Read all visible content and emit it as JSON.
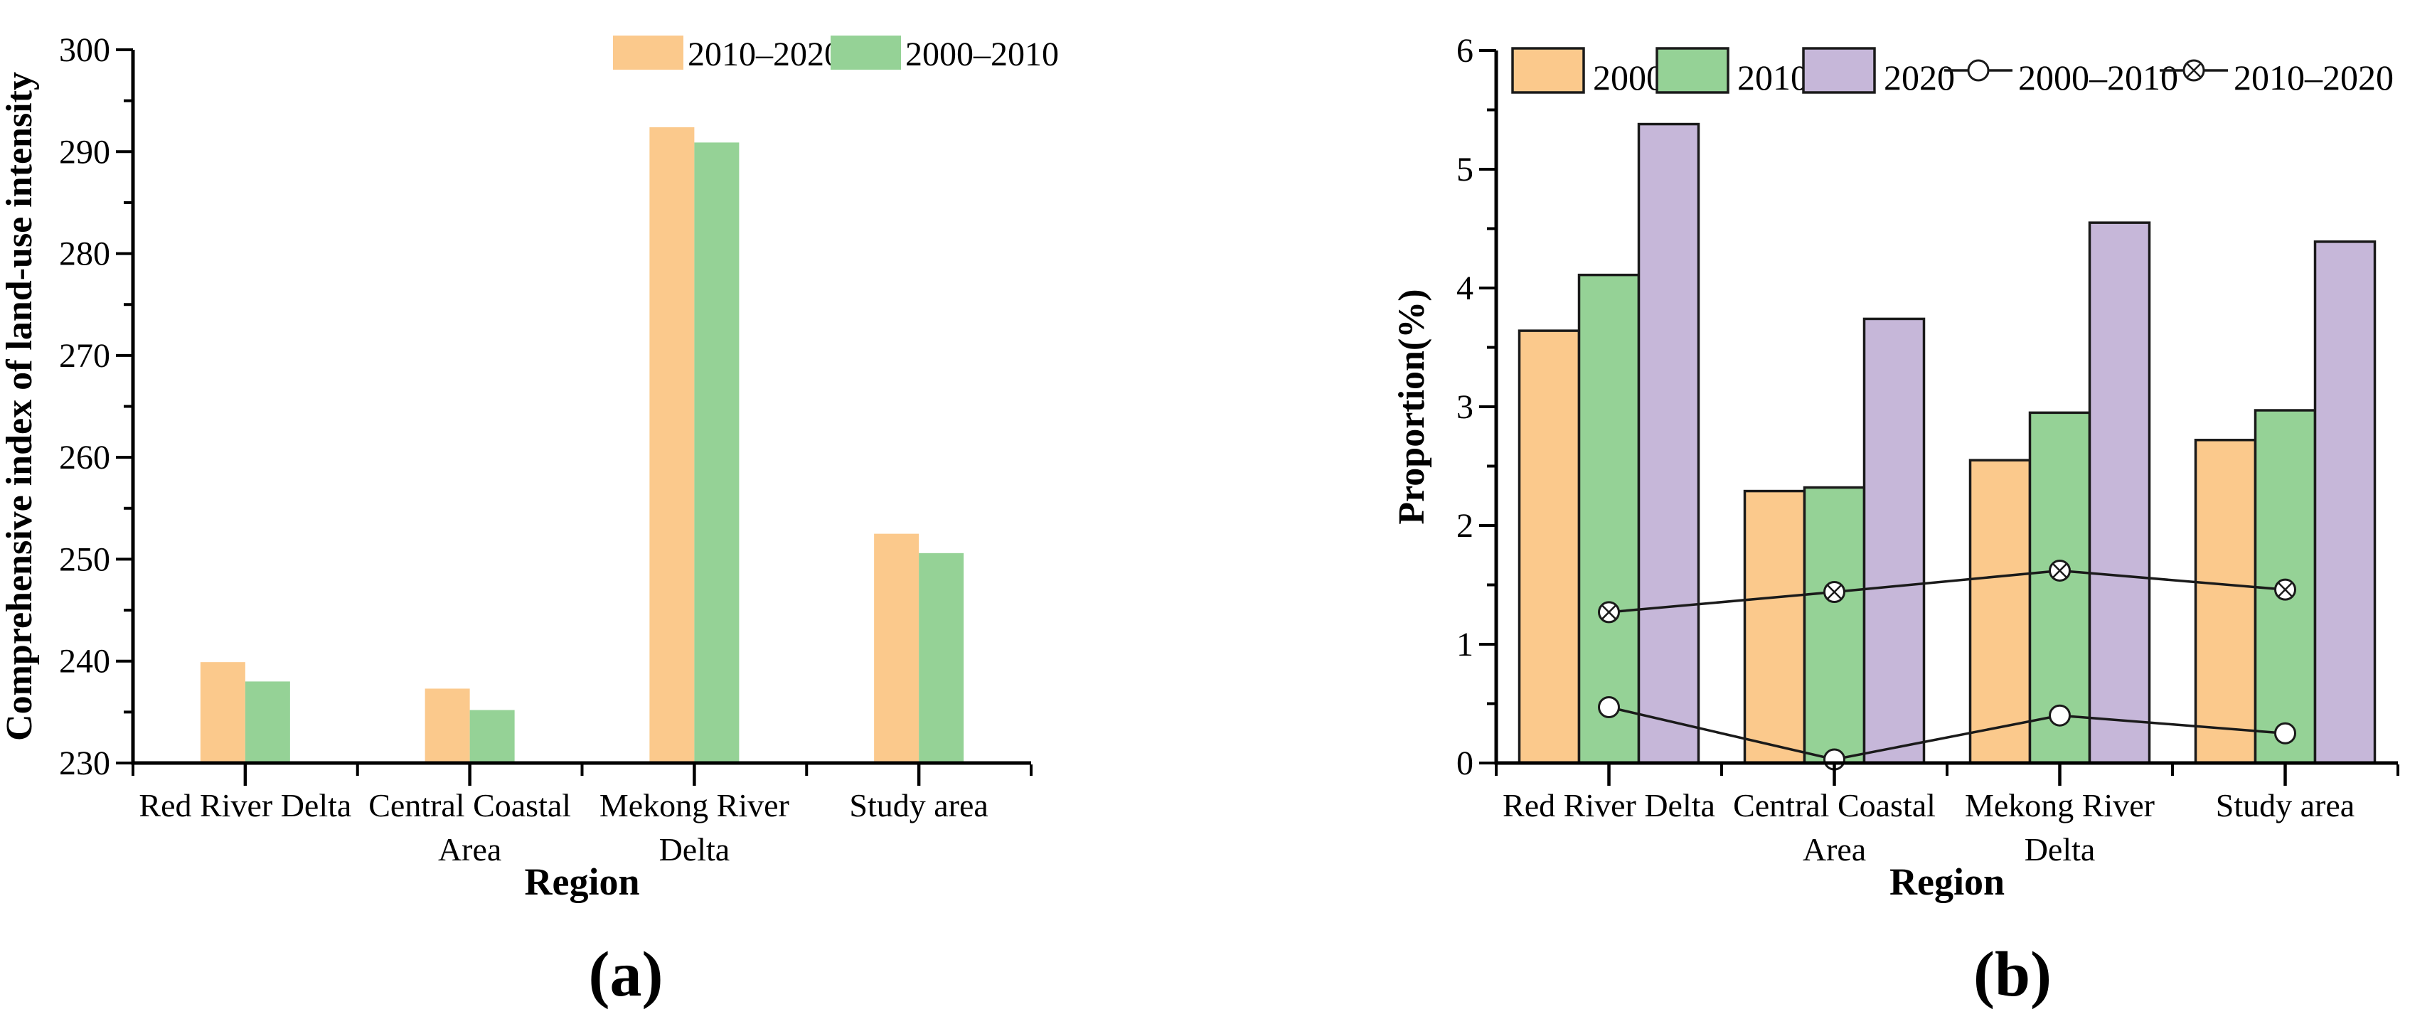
{
  "figure": {
    "background": "#ffffff",
    "panels": [
      {
        "caption": "(a)"
      },
      {
        "caption": "(b)"
      }
    ]
  },
  "colors": {
    "orange": "#FBC98C",
    "green": "#95D296",
    "purple": "#C6B7D9",
    "axis": "#000000",
    "bar_border": "#1A1A1A",
    "line": "#1A1A1A",
    "marker_fill": "#FFFFFF"
  },
  "chart_data": [
    {
      "type": "bar",
      "title": "",
      "categories": [
        "Red River Delta",
        "Central Coastal\nArea",
        "Mekong River\nDelta",
        "Study area"
      ],
      "series": [
        {
          "name": "2010–2020",
          "color": "#FBC98C",
          "values": [
            239.9,
            237.3,
            292.4,
            252.5
          ]
        },
        {
          "name": "2000–2010",
          "color": "#95D296",
          "values": [
            238.0,
            235.2,
            290.9,
            250.6
          ]
        }
      ],
      "xlabel": "Region",
      "ylabel": "Comprehensive index of land-use intensity",
      "ylim": [
        230,
        300
      ],
      "ytick_major": 10,
      "ytick_minor": 5,
      "grid": false,
      "legend_position": "top-right-inside",
      "bar_outline": false
    },
    {
      "type": "bar+line",
      "title": "",
      "categories": [
        "Red River Delta",
        "Central Coastal\nArea",
        "Mekong River\nDelta",
        "Study area"
      ],
      "series": [
        {
          "name": "2000",
          "kind": "bar",
          "color": "#FBC98C",
          "values": [
            3.64,
            2.29,
            2.55,
            2.72
          ]
        },
        {
          "name": "2010",
          "kind": "bar",
          "color": "#95D296",
          "values": [
            4.11,
            2.32,
            2.95,
            2.97
          ]
        },
        {
          "name": "2020",
          "kind": "bar",
          "color": "#C6B7D9",
          "values": [
            5.38,
            3.74,
            4.55,
            4.39
          ]
        },
        {
          "name": "2000–2010",
          "kind": "line",
          "marker": "open-circle",
          "values": [
            0.47,
            0.03,
            0.4,
            0.25
          ]
        },
        {
          "name": "2010–2020",
          "kind": "line",
          "marker": "circle-cross",
          "values": [
            1.27,
            1.44,
            1.62,
            1.46
          ]
        }
      ],
      "xlabel": "Region",
      "ylabel": "Proportion(%)",
      "ylim": [
        0,
        6
      ],
      "ytick_major": 1,
      "ytick_minor": 0.5,
      "grid": false,
      "legend_position": "top-inside",
      "bar_outline": true
    }
  ]
}
